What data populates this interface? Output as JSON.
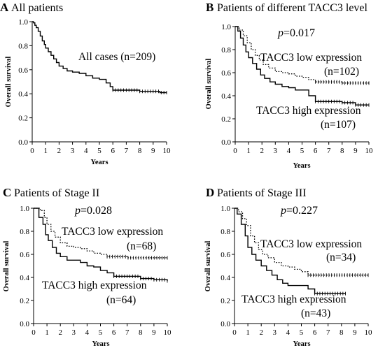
{
  "chart_data": [
    {
      "type": "line",
      "panel": "A",
      "title": "All patients",
      "xlabel": "Years",
      "ylabel": "Overall survival",
      "xlim": [
        0,
        10
      ],
      "ylim": [
        0,
        1.0
      ],
      "xticks": [
        "0",
        "1",
        "2",
        "3",
        "4",
        "5",
        "6",
        "7",
        "8",
        "9",
        "10"
      ],
      "yticks": [
        "0.0",
        "0.2",
        "0.4",
        "0.6",
        "0.8",
        "1.0"
      ],
      "pvalue": "",
      "series": [
        {
          "label": "All cases (n=209)",
          "style": "solid",
          "points": [
            [
              0,
              1.0
            ],
            [
              0.1,
              0.99
            ],
            [
              0.2,
              0.97
            ],
            [
              0.3,
              0.95
            ],
            [
              0.45,
              0.92
            ],
            [
              0.6,
              0.88
            ],
            [
              0.75,
              0.84
            ],
            [
              0.9,
              0.81
            ],
            [
              1.0,
              0.78
            ],
            [
              1.2,
              0.75
            ],
            [
              1.4,
              0.72
            ],
            [
              1.6,
              0.69
            ],
            [
              1.8,
              0.66
            ],
            [
              2.0,
              0.63
            ],
            [
              2.3,
              0.61
            ],
            [
              2.6,
              0.59
            ],
            [
              3.0,
              0.58
            ],
            [
              3.5,
              0.57
            ],
            [
              4.0,
              0.55
            ],
            [
              4.5,
              0.53
            ],
            [
              5.0,
              0.52
            ],
            [
              5.5,
              0.49
            ],
            [
              5.8,
              0.46
            ],
            [
              6.0,
              0.43
            ],
            [
              7.0,
              0.43
            ],
            [
              8.0,
              0.42
            ],
            [
              9.0,
              0.42
            ],
            [
              9.5,
              0.41
            ],
            [
              10.0,
              0.41
            ]
          ],
          "censor_from": 6.0
        }
      ]
    },
    {
      "type": "line",
      "panel": "B",
      "title": "Patients of different TACC3 level",
      "xlabel": "Years",
      "ylabel": "Overall survival",
      "xlim": [
        0,
        10
      ],
      "ylim": [
        0,
        1.0
      ],
      "xticks": [
        "0",
        "1",
        "2",
        "3",
        "4",
        "5",
        "6",
        "7",
        "8",
        "9",
        "10"
      ],
      "yticks": [
        "0.0",
        "0.2",
        "0.4",
        "0.6",
        "0.8",
        "1.0"
      ],
      "pvalue": "=0.017",
      "series": [
        {
          "label": "TACC3 low expression",
          "n": "(n=102)",
          "style": "dotted",
          "points": [
            [
              0,
              1.0
            ],
            [
              0.3,
              0.97
            ],
            [
              0.6,
              0.92
            ],
            [
              0.9,
              0.86
            ],
            [
              1.2,
              0.8
            ],
            [
              1.5,
              0.75
            ],
            [
              1.8,
              0.71
            ],
            [
              2.1,
              0.67
            ],
            [
              2.5,
              0.64
            ],
            [
              3.0,
              0.61
            ],
            [
              3.5,
              0.6
            ],
            [
              4.0,
              0.59
            ],
            [
              4.5,
              0.57
            ],
            [
              5.0,
              0.56
            ],
            [
              5.5,
              0.54
            ],
            [
              6.0,
              0.52
            ],
            [
              7.0,
              0.52
            ],
            [
              8.0,
              0.51
            ],
            [
              9.0,
              0.51
            ],
            [
              10.0,
              0.51
            ]
          ],
          "censor_from": 6.0
        },
        {
          "label": "TACC3 high expression",
          "n": "(n=107)",
          "style": "solid",
          "points": [
            [
              0,
              1.0
            ],
            [
              0.2,
              0.96
            ],
            [
              0.4,
              0.9
            ],
            [
              0.6,
              0.84
            ],
            [
              0.8,
              0.78
            ],
            [
              1.0,
              0.73
            ],
            [
              1.3,
              0.68
            ],
            [
              1.6,
              0.63
            ],
            [
              1.9,
              0.58
            ],
            [
              2.2,
              0.55
            ],
            [
              2.6,
              0.52
            ],
            [
              3.0,
              0.5
            ],
            [
              3.5,
              0.48
            ],
            [
              4.0,
              0.47
            ],
            [
              4.5,
              0.45
            ],
            [
              5.0,
              0.45
            ],
            [
              5.5,
              0.4
            ],
            [
              6.0,
              0.35
            ],
            [
              7.0,
              0.35
            ],
            [
              8.0,
              0.34
            ],
            [
              9.0,
              0.32
            ],
            [
              10.0,
              0.32
            ]
          ],
          "censor_from": 6.0
        }
      ]
    },
    {
      "type": "line",
      "panel": "C",
      "title": "Patients of Stage II",
      "xlabel": "Years",
      "ylabel": "Overall survival",
      "xlim": [
        0,
        10
      ],
      "ylim": [
        0,
        1.0
      ],
      "xticks": [
        "0",
        "1",
        "2",
        "3",
        "4",
        "5",
        "6",
        "7",
        "8",
        "9",
        "10"
      ],
      "yticks": [
        "0.0",
        "0.2",
        "0.4",
        "0.6",
        "0.8",
        "1.0"
      ],
      "pvalue": "=0.028",
      "series": [
        {
          "label": "TACC3 low expression",
          "n": "(n=68)",
          "style": "dotted",
          "points": [
            [
              0,
              1.0
            ],
            [
              0.5,
              0.98
            ],
            [
              0.8,
              0.92
            ],
            [
              1.0,
              0.86
            ],
            [
              1.3,
              0.8
            ],
            [
              1.6,
              0.75
            ],
            [
              2.0,
              0.7
            ],
            [
              2.5,
              0.67
            ],
            [
              3.0,
              0.66
            ],
            [
              3.5,
              0.65
            ],
            [
              4.0,
              0.63
            ],
            [
              4.5,
              0.61
            ],
            [
              5.0,
              0.6
            ],
            [
              5.5,
              0.58
            ],
            [
              6.0,
              0.58
            ],
            [
              7.0,
              0.57
            ],
            [
              8.0,
              0.57
            ],
            [
              9.0,
              0.57
            ],
            [
              10.0,
              0.57
            ]
          ],
          "censor_from": 5.5
        },
        {
          "label": "TACC3 high expression",
          "n": "(n=64)",
          "style": "solid",
          "points": [
            [
              0,
              1.0
            ],
            [
              0.4,
              0.92
            ],
            [
              0.7,
              0.86
            ],
            [
              0.9,
              0.77
            ],
            [
              1.1,
              0.72
            ],
            [
              1.4,
              0.66
            ],
            [
              1.7,
              0.61
            ],
            [
              2.0,
              0.58
            ],
            [
              2.5,
              0.55
            ],
            [
              3.0,
              0.55
            ],
            [
              3.5,
              0.53
            ],
            [
              4.0,
              0.5
            ],
            [
              4.5,
              0.49
            ],
            [
              5.0,
              0.46
            ],
            [
              5.5,
              0.44
            ],
            [
              6.0,
              0.41
            ],
            [
              7.0,
              0.41
            ],
            [
              8.0,
              0.39
            ],
            [
              9.0,
              0.38
            ],
            [
              10.0,
              0.37
            ]
          ],
          "censor_from": 6.0
        }
      ]
    },
    {
      "type": "line",
      "panel": "D",
      "title": "Patients of Stage III",
      "xlabel": "Years",
      "ylabel": "Overall survival",
      "xlim": [
        0,
        10
      ],
      "ylim": [
        0,
        1.0
      ],
      "xticks": [
        "0",
        "1",
        "2",
        "3",
        "4",
        "5",
        "6",
        "7",
        "8",
        "9",
        "10"
      ],
      "yticks": [
        "0.0",
        "0.2",
        "0.4",
        "0.6",
        "0.8",
        "1.0"
      ],
      "pvalue": "=0.227",
      "series": [
        {
          "label": "TACC3 low expression",
          "n": "(n=34)",
          "style": "dotted",
          "points": [
            [
              0,
              1.0
            ],
            [
              0.3,
              0.97
            ],
            [
              0.6,
              0.91
            ],
            [
              0.9,
              0.85
            ],
            [
              1.2,
              0.76
            ],
            [
              1.5,
              0.7
            ],
            [
              1.8,
              0.64
            ],
            [
              2.1,
              0.6
            ],
            [
              2.5,
              0.57
            ],
            [
              3.0,
              0.53
            ],
            [
              3.5,
              0.5
            ],
            [
              4.0,
              0.49
            ],
            [
              4.5,
              0.47
            ],
            [
              5.0,
              0.45
            ],
            [
              5.5,
              0.42
            ],
            [
              6.0,
              0.42
            ],
            [
              7.0,
              0.42
            ],
            [
              8.0,
              0.42
            ],
            [
              9.0,
              0.42
            ],
            [
              10.0,
              0.42
            ]
          ],
          "censor_from": 5.5
        },
        {
          "label": "TACC3 high expression",
          "n": "(n=43)",
          "style": "solid",
          "points": [
            [
              0,
              1.0
            ],
            [
              0.2,
              0.95
            ],
            [
              0.5,
              0.86
            ],
            [
              0.8,
              0.76
            ],
            [
              1.0,
              0.66
            ],
            [
              1.3,
              0.6
            ],
            [
              1.6,
              0.55
            ],
            [
              2.0,
              0.5
            ],
            [
              2.4,
              0.46
            ],
            [
              2.8,
              0.42
            ],
            [
              3.2,
              0.38
            ],
            [
              3.6,
              0.35
            ],
            [
              4.0,
              0.33
            ],
            [
              5.0,
              0.33
            ],
            [
              5.5,
              0.3
            ],
            [
              6.0,
              0.26
            ],
            [
              7.0,
              0.26
            ],
            [
              8.0,
              0.26
            ],
            [
              8.3,
              0.26
            ]
          ],
          "censor_from": 6.0
        }
      ]
    }
  ]
}
